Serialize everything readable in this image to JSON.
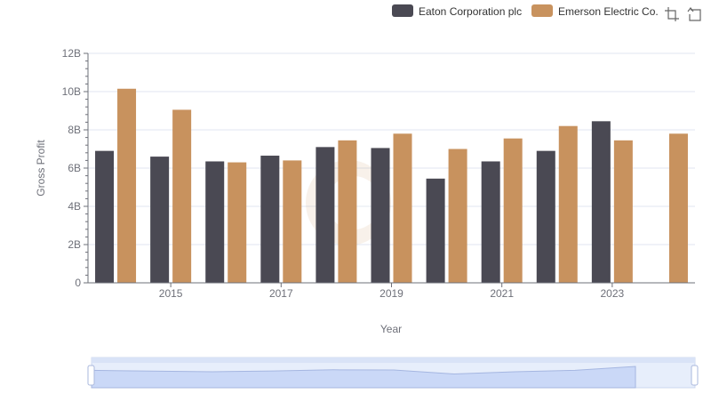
{
  "chart_data": {
    "type": "bar",
    "title": "",
    "xlabel": "Year",
    "ylabel": "Gross Profit",
    "x": [
      2014,
      2015,
      2016,
      2017,
      2018,
      2019,
      2020,
      2021,
      2022,
      2023,
      2024
    ],
    "x_tick_labels": [
      "2015",
      "2017",
      "2019",
      "2021",
      "2023"
    ],
    "ylim": [
      0,
      12000000000
    ],
    "y_tick_labels": [
      "0",
      "2B",
      "4B",
      "6B",
      "8B",
      "10B",
      "12B"
    ],
    "legend_position": "top-right",
    "grid": true,
    "series": [
      {
        "name": "Eaton Corporation plc",
        "color": "#4a4953",
        "values": [
          6900000000,
          6600000000,
          6350000000,
          6650000000,
          7100000000,
          7050000000,
          5450000000,
          6350000000,
          6900000000,
          8450000000,
          null
        ]
      },
      {
        "name": "Emerson Electric Co.",
        "color": "#c8925e",
        "values": [
          10150000000,
          9050000000,
          6300000000,
          6400000000,
          7450000000,
          7800000000,
          7000000000,
          7550000000,
          8200000000,
          7450000000,
          7800000000
        ]
      }
    ]
  },
  "toolbar": {
    "icons": [
      "zoom-select-icon",
      "zoom-reset-icon"
    ]
  },
  "datazoom": {
    "range_start": 0,
    "range_end": 100,
    "fill_color": "#d4dff6",
    "border_color": "#aab8dd"
  }
}
